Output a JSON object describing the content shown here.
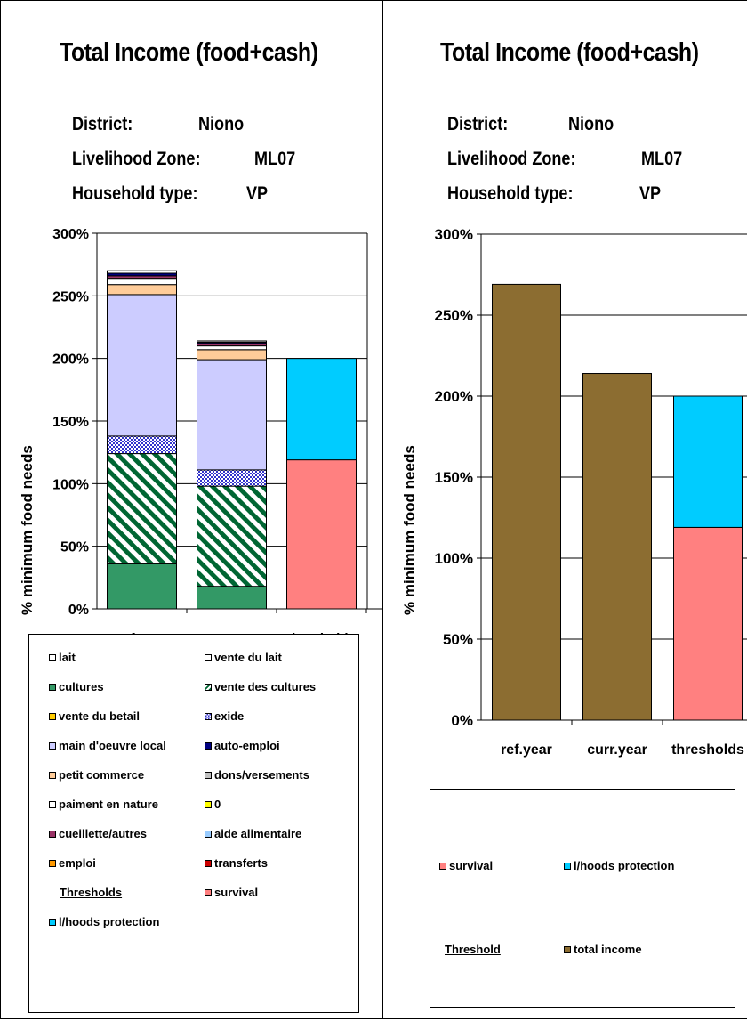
{
  "chart_data": [
    {
      "type": "bar",
      "stacked": true,
      "title": "Total Income (food+cash)",
      "info": {
        "district_label": "District:",
        "district_value": "Niono",
        "zone_label": "Livelihood Zone:",
        "zone_value": "ML07",
        "household_label": "Household type:",
        "household_value": "VP"
      },
      "ylabel": "% minimum food needs",
      "ylim": [
        0,
        300
      ],
      "yticks": [
        {
          "value": 0,
          "label": "0%"
        },
        {
          "value": 50,
          "label": "50%"
        },
        {
          "value": 100,
          "label": "100%"
        },
        {
          "value": 150,
          "label": "150%"
        },
        {
          "value": 200,
          "label": "200%"
        },
        {
          "value": 250,
          "label": "250%"
        },
        {
          "value": 300,
          "label": "300%"
        }
      ],
      "categories": [
        "ref.year",
        "curr.year",
        "thresholds"
      ],
      "grid": true,
      "series": [
        {
          "name": "cultures",
          "color": "#339966",
          "pattern": "solid",
          "values": [
            36,
            18,
            0
          ]
        },
        {
          "name": "vente des cultures",
          "color": "#006633",
          "pattern": "stripes",
          "values": [
            88,
            80,
            0
          ]
        },
        {
          "name": "exide",
          "color": "#3333cc",
          "pattern": "checker",
          "values": [
            14,
            13,
            0
          ]
        },
        {
          "name": "main d'oeuvre local",
          "color": "#ccccff",
          "pattern": "solid",
          "values": [
            113,
            88,
            0
          ]
        },
        {
          "name": "petit commerce",
          "color": "#ffcc99",
          "pattern": "solid",
          "values": [
            8,
            8,
            0
          ]
        },
        {
          "name": "paiment en nature",
          "color": "#ffffff",
          "pattern": "solid",
          "values": [
            5,
            3,
            0
          ]
        },
        {
          "name": "cueillette/autres",
          "color": "#993366",
          "pattern": "solid",
          "values": [
            2,
            2,
            0
          ]
        },
        {
          "name": "auto-emploi",
          "color": "#000080",
          "pattern": "solid",
          "values": [
            2,
            1,
            0
          ]
        },
        {
          "name": "lait",
          "color": "#ffffff",
          "pattern": "solid",
          "values": [
            2,
            1,
            0
          ]
        },
        {
          "name": "survival",
          "color": "#ff8080",
          "pattern": "solid",
          "values": [
            0,
            0,
            119
          ]
        },
        {
          "name": "l/hoods protection",
          "color": "#00ccff",
          "pattern": "solid",
          "values": [
            0,
            0,
            81
          ]
        }
      ],
      "legend": {
        "items": [
          {
            "label": "lait",
            "color": "#ffffff"
          },
          {
            "label": "vente du lait",
            "color": "#ffffff"
          },
          {
            "label": "cultures",
            "color": "#339966"
          },
          {
            "label": "vente des cultures",
            "color": "#006633",
            "pattern": "stripes"
          },
          {
            "label": "vente du betail",
            "color": "#ffcc00"
          },
          {
            "label": "exide",
            "color": "#3333cc",
            "pattern": "checker"
          },
          {
            "label": "main d'oeuvre local",
            "color": "#ccccff"
          },
          {
            "label": "auto-emploi",
            "color": "#000080"
          },
          {
            "label": "petit commerce",
            "color": "#ffcc99"
          },
          {
            "label": "dons/versements",
            "color": "#c0c0c0"
          },
          {
            "label": "paiment en nature",
            "color": "#ffffff"
          },
          {
            "label": "0",
            "color": "#ffff00"
          },
          {
            "label": "cueillette/autres",
            "color": "#993366"
          },
          {
            "label": "aide alimentaire",
            "color": "#99ccff"
          },
          {
            "label": "emploi",
            "color": "#ff9900"
          },
          {
            "label": "transferts",
            "color": "#cc0000"
          }
        ],
        "thresholds_heading": "Thresholds",
        "survival": {
          "label": "survival",
          "color": "#ff8080"
        },
        "protection": {
          "label": "l/hoods protection",
          "color": "#00ccff"
        }
      }
    },
    {
      "type": "bar",
      "stacked": true,
      "title": "Total Income (food+cash)",
      "info": {
        "district_label": "District:",
        "district_value": "Niono",
        "zone_label": "Livelihood Zone:",
        "zone_value": "ML07",
        "household_label": "Household type:",
        "household_value": "VP"
      },
      "ylabel": "% minimum food needs",
      "ylim": [
        0,
        300
      ],
      "yticks": [
        {
          "value": 0,
          "label": "0%"
        },
        {
          "value": 50,
          "label": "50%"
        },
        {
          "value": 100,
          "label": "100%"
        },
        {
          "value": 150,
          "label": "150%"
        },
        {
          "value": 200,
          "label": "200%"
        },
        {
          "value": 250,
          "label": "250%"
        },
        {
          "value": 300,
          "label": "300%"
        }
      ],
      "categories": [
        "ref.year",
        "curr.year",
        "thresholds"
      ],
      "grid": true,
      "series": [
        {
          "name": "total income",
          "color": "#8c6d31",
          "values": [
            269,
            214,
            0
          ]
        },
        {
          "name": "survival",
          "color": "#ff8080",
          "values": [
            0,
            0,
            119
          ]
        },
        {
          "name": "l/hoods protection",
          "color": "#00ccff",
          "values": [
            0,
            0,
            81
          ]
        }
      ],
      "legend": {
        "survival": {
          "label": "survival",
          "color": "#ff8080"
        },
        "protection": {
          "label": "l/hoods protection",
          "color": "#00ccff"
        },
        "threshold_heading": "Threshold",
        "total": {
          "label": "total income",
          "color": "#8c6d31"
        }
      }
    }
  ]
}
